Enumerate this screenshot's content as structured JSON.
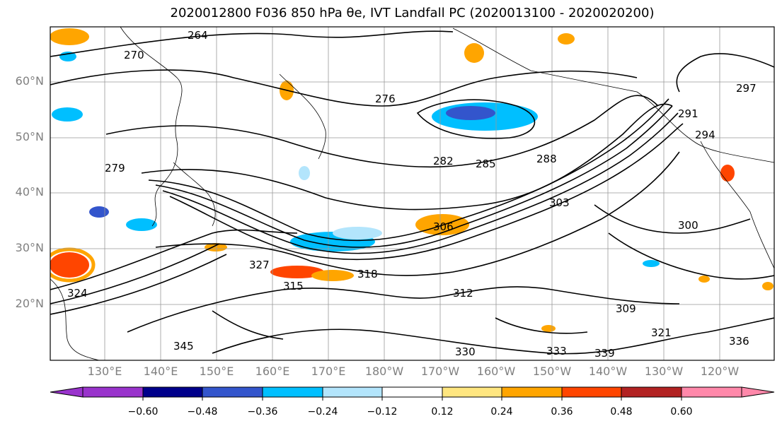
{
  "title": "2020012800 F036 850 hPa θe, IVT Landfall PC (2020013100 - 2020020200)",
  "latitude_labels": [
    "60°N",
    "50°N",
    "40°N",
    "30°N",
    "20°N"
  ],
  "longitude_labels": [
    "130°E",
    "140°E",
    "150°E",
    "160°E",
    "170°E",
    "180°W",
    "170°W",
    "160°W",
    "150°W",
    "140°W",
    "130°W",
    "120°W"
  ],
  "contour_labels": [
    "264",
    "270",
    "276",
    "279",
    "282",
    "285",
    "288",
    "291",
    "294",
    "297",
    "300",
    "303",
    "306",
    "309",
    "312",
    "315",
    "318",
    "321",
    "324",
    "327",
    "330",
    "333",
    "336",
    "339",
    "345"
  ],
  "colorbar": {
    "ticks": [
      "−0.60",
      "−0.48",
      "−0.36",
      "−0.24",
      "−0.12",
      "0.12",
      "0.24",
      "0.36",
      "0.48",
      "0.60"
    ],
    "colors": [
      "#9933cc",
      "#00008b",
      "#3355cc",
      "#00bfff",
      "#b3e5fc",
      "#ffffff",
      "#ffe680",
      "#ffa500",
      "#ff4500",
      "#b22222",
      "#ff88aa"
    ]
  }
}
